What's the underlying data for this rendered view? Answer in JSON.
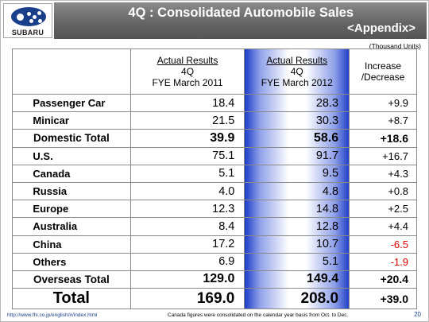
{
  "header": {
    "title": "4Q : Consolidated Automobile Sales",
    "subtitle": "<Appendix>",
    "logo_text": "SUBARU"
  },
  "units": "(Thousand Units)",
  "table": {
    "columns": {
      "c2011": {
        "line1": "Actual Results",
        "line2": "4Q",
        "line3": "FYE March 2011"
      },
      "c2012": {
        "line1": "Actual Results",
        "line2": "4Q",
        "line3": "FYE March 2012"
      },
      "inc": {
        "line1": "Increase",
        "line2": "/Decrease"
      }
    },
    "domestic": [
      {
        "label": "Passenger Car",
        "v2011": "18.4",
        "v2012": "28.3",
        "inc": "+9.9"
      },
      {
        "label": "Minicar",
        "v2011": "21.5",
        "v2012": "30.3",
        "inc": "+8.7"
      }
    ],
    "domestic_total": {
      "label": "Domestic Total",
      "v2011": "39.9",
      "v2012": "58.6",
      "inc": "+18.6"
    },
    "overseas": [
      {
        "label": "U.S.",
        "v2011": "75.1",
        "v2012": "91.7",
        "inc": "+16.7"
      },
      {
        "label": "Canada",
        "v2011": "5.1",
        "v2012": "9.5",
        "inc": "+4.3"
      },
      {
        "label": "Russia",
        "v2011": "4.0",
        "v2012": "4.8",
        "inc": "+0.8"
      },
      {
        "label": "Europe",
        "v2011": "12.3",
        "v2012": "14.8",
        "inc": "+2.5"
      },
      {
        "label": "Australia",
        "v2011": "8.4",
        "v2012": "12.8",
        "inc": "+4.4"
      },
      {
        "label": "China",
        "v2011": "17.2",
        "v2012": "10.7",
        "inc": "-6.5"
      },
      {
        "label": "Others",
        "v2011": "6.9",
        "v2012": "5.1",
        "inc": "-1.9"
      }
    ],
    "overseas_total": {
      "label": "Overseas Total",
      "v2011": "129.0",
      "v2012": "149.4",
      "inc": "+20.4"
    },
    "total": {
      "label": "Total",
      "v2011": "169.0",
      "v2012": "208.0",
      "inc": "+39.0"
    }
  },
  "colors": {
    "negative": "#e00000",
    "title_bar": "#666666",
    "highlight_column": "#1e3ec8"
  },
  "footer": {
    "url": "http://www.fhi.co.jp/english/ir/index.html",
    "note": "Canada figures were consolidated on the calendar year basis from Oct. to Dec.",
    "page": "20"
  }
}
